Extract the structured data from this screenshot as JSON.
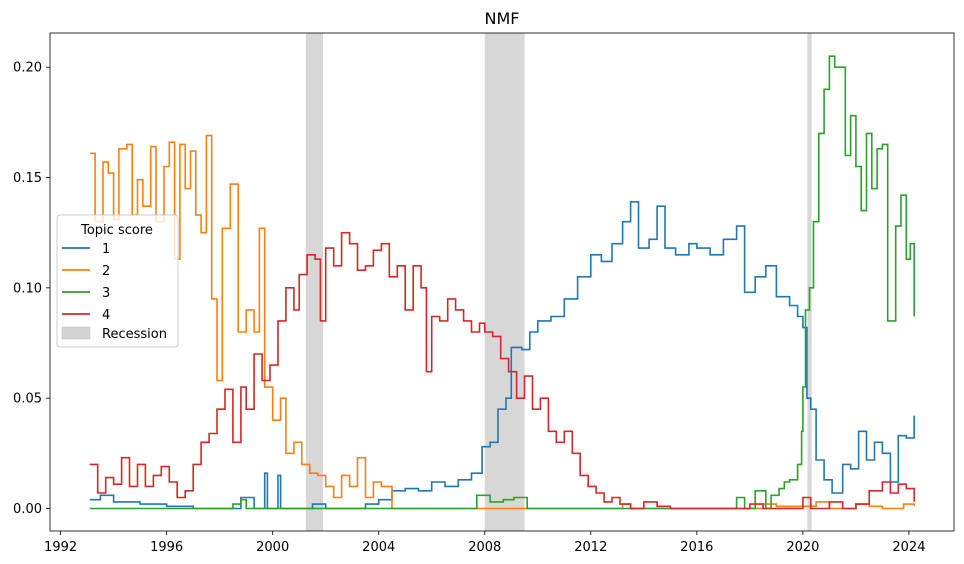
{
  "chart_data": {
    "type": "line",
    "step": true,
    "title": "NMF",
    "xlabel": "",
    "ylabel": "",
    "xlim": [
      1991.6,
      2025.7
    ],
    "ylim": [
      -0.0102,
      0.2155
    ],
    "xticks": [
      1992,
      1996,
      2000,
      2004,
      2008,
      2012,
      2016,
      2020,
      2024
    ],
    "yticks": [
      0.0,
      0.05,
      0.1,
      0.15,
      0.2
    ],
    "ytick_labels": [
      "0.00",
      "0.05",
      "0.10",
      "0.15",
      "0.20"
    ],
    "grid": false,
    "legend": {
      "title": "Topic score",
      "placement": "center-left"
    },
    "recessions": [
      [
        2001.25,
        2001.9
      ],
      [
        2008.0,
        2009.5
      ],
      [
        2020.17,
        2020.33
      ]
    ],
    "recession_label": "Recession",
    "recession_color": "#d3d3d3",
    "series": [
      {
        "name": "1",
        "color": "#1f77b4",
        "points": [
          [
            1993.1,
            0.004
          ],
          [
            1993.5,
            0.006
          ],
          [
            1994.0,
            0.003
          ],
          [
            1995.0,
            0.002
          ],
          [
            1996.0,
            0.001
          ],
          [
            1997.0,
            0.0
          ],
          [
            1998.0,
            0.0
          ],
          [
            1998.8,
            0.005
          ],
          [
            1999.3,
            0.0
          ],
          [
            1999.7,
            0.016
          ],
          [
            1999.8,
            0.0
          ],
          [
            2000.2,
            0.015
          ],
          [
            2000.3,
            0.0
          ],
          [
            2001.5,
            0.002
          ],
          [
            2002.0,
            0.0
          ],
          [
            2003.5,
            0.002
          ],
          [
            2004.0,
            0.004
          ],
          [
            2004.5,
            0.008
          ],
          [
            2005.0,
            0.009
          ],
          [
            2005.5,
            0.008
          ],
          [
            2006.0,
            0.012
          ],
          [
            2006.5,
            0.01
          ],
          [
            2007.0,
            0.013
          ],
          [
            2007.5,
            0.016
          ],
          [
            2007.9,
            0.028
          ],
          [
            2008.2,
            0.03
          ],
          [
            2008.5,
            0.045
          ],
          [
            2008.8,
            0.05
          ],
          [
            2009.0,
            0.073
          ],
          [
            2009.4,
            0.072
          ],
          [
            2009.7,
            0.08
          ],
          [
            2010.0,
            0.085
          ],
          [
            2010.5,
            0.087
          ],
          [
            2011.0,
            0.095
          ],
          [
            2011.5,
            0.105
          ],
          [
            2012.0,
            0.115
          ],
          [
            2012.4,
            0.112
          ],
          [
            2012.8,
            0.12
          ],
          [
            2013.2,
            0.13
          ],
          [
            2013.5,
            0.139
          ],
          [
            2013.8,
            0.118
          ],
          [
            2014.2,
            0.122
          ],
          [
            2014.5,
            0.137
          ],
          [
            2014.8,
            0.118
          ],
          [
            2015.2,
            0.115
          ],
          [
            2015.7,
            0.12
          ],
          [
            2016.0,
            0.118
          ],
          [
            2016.5,
            0.115
          ],
          [
            2017.0,
            0.122
          ],
          [
            2017.5,
            0.128
          ],
          [
            2017.8,
            0.098
          ],
          [
            2018.2,
            0.105
          ],
          [
            2018.6,
            0.11
          ],
          [
            2019.0,
            0.096
          ],
          [
            2019.5,
            0.092
          ],
          [
            2019.8,
            0.087
          ],
          [
            2020.0,
            0.082
          ],
          [
            2020.15,
            0.05
          ],
          [
            2020.3,
            0.045
          ],
          [
            2020.5,
            0.022
          ],
          [
            2020.8,
            0.013
          ],
          [
            2021.1,
            0.007
          ],
          [
            2021.5,
            0.02
          ],
          [
            2021.8,
            0.018
          ],
          [
            2022.1,
            0.035
          ],
          [
            2022.4,
            0.022
          ],
          [
            2022.7,
            0.03
          ],
          [
            2023.0,
            0.025
          ],
          [
            2023.3,
            0.012
          ],
          [
            2023.6,
            0.033
          ],
          [
            2023.9,
            0.032
          ],
          [
            2024.2,
            0.042
          ]
        ],
        "xend": 2024.2
      },
      {
        "name": "2",
        "color": "#ff7f0e",
        "points": [
          [
            1993.1,
            0.161
          ],
          [
            1993.3,
            0.13
          ],
          [
            1993.6,
            0.157
          ],
          [
            1993.8,
            0.152
          ],
          [
            1994.0,
            0.131
          ],
          [
            1994.2,
            0.163
          ],
          [
            1994.5,
            0.165
          ],
          [
            1994.7,
            0.133
          ],
          [
            1994.9,
            0.149
          ],
          [
            1995.1,
            0.137
          ],
          [
            1995.4,
            0.164
          ],
          [
            1995.6,
            0.13
          ],
          [
            1995.9,
            0.155
          ],
          [
            1996.1,
            0.166
          ],
          [
            1996.3,
            0.113
          ],
          [
            1996.5,
            0.165
          ],
          [
            1996.7,
            0.145
          ],
          [
            1996.9,
            0.162
          ],
          [
            1997.1,
            0.133
          ],
          [
            1997.3,
            0.125
          ],
          [
            1997.5,
            0.169
          ],
          [
            1997.7,
            0.095
          ],
          [
            1997.9,
            0.058
          ],
          [
            1998.1,
            0.127
          ],
          [
            1998.4,
            0.147
          ],
          [
            1998.7,
            0.08
          ],
          [
            1999.0,
            0.09
          ],
          [
            1999.3,
            0.08
          ],
          [
            1999.5,
            0.127
          ],
          [
            1999.7,
            0.055
          ],
          [
            2000.0,
            0.04
          ],
          [
            2000.3,
            0.05
          ],
          [
            2000.5,
            0.025
          ],
          [
            2000.8,
            0.03
          ],
          [
            2001.1,
            0.02
          ],
          [
            2001.4,
            0.016
          ],
          [
            2001.7,
            0.015
          ],
          [
            2002.0,
            0.01
          ],
          [
            2002.3,
            0.005
          ],
          [
            2002.6,
            0.015
          ],
          [
            2002.9,
            0.01
          ],
          [
            2003.2,
            0.023
          ],
          [
            2003.5,
            0.005
          ],
          [
            2003.8,
            0.012
          ],
          [
            2004.1,
            0.01
          ],
          [
            2004.5,
            0.0
          ],
          [
            2005.0,
            0.0
          ],
          [
            2013.2,
            0.002
          ],
          [
            2013.5,
            0.0
          ],
          [
            2017.0,
            0.0
          ],
          [
            2018.5,
            0.002
          ],
          [
            2019.0,
            0.001
          ],
          [
            2020.5,
            0.003
          ],
          [
            2021.0,
            0.0
          ],
          [
            2022.0,
            0.002
          ],
          [
            2022.5,
            0.001
          ],
          [
            2023.0,
            0.0
          ],
          [
            2023.8,
            0.002
          ],
          [
            2024.2,
            0.001
          ]
        ],
        "xend": 2024.2
      },
      {
        "name": "3",
        "color": "#2ca02c",
        "points": [
          [
            1993.1,
            0.0
          ],
          [
            1998.5,
            0.002
          ],
          [
            1998.8,
            0.004
          ],
          [
            1999.0,
            0.0
          ],
          [
            2001.5,
            0.0
          ],
          [
            2007.7,
            0.006
          ],
          [
            2008.2,
            0.003
          ],
          [
            2008.7,
            0.004
          ],
          [
            2009.1,
            0.005
          ],
          [
            2009.6,
            0.0
          ],
          [
            2013.0,
            0.0
          ],
          [
            2017.0,
            0.0
          ],
          [
            2017.5,
            0.005
          ],
          [
            2017.8,
            0.0
          ],
          [
            2018.2,
            0.008
          ],
          [
            2018.6,
            0.0
          ],
          [
            2018.8,
            0.006
          ],
          [
            2019.1,
            0.009
          ],
          [
            2019.3,
            0.012
          ],
          [
            2019.5,
            0.013
          ],
          [
            2019.8,
            0.02
          ],
          [
            2019.95,
            0.035
          ],
          [
            2020.0,
            0.055
          ],
          [
            2020.1,
            0.09
          ],
          [
            2020.25,
            0.1
          ],
          [
            2020.4,
            0.13
          ],
          [
            2020.6,
            0.17
          ],
          [
            2020.8,
            0.19
          ],
          [
            2021.0,
            0.205
          ],
          [
            2021.2,
            0.2
          ],
          [
            2021.4,
            0.2
          ],
          [
            2021.6,
            0.16
          ],
          [
            2021.8,
            0.178
          ],
          [
            2022.0,
            0.155
          ],
          [
            2022.2,
            0.135
          ],
          [
            2022.4,
            0.17
          ],
          [
            2022.6,
            0.145
          ],
          [
            2022.8,
            0.163
          ],
          [
            2023.0,
            0.165
          ],
          [
            2023.2,
            0.085
          ],
          [
            2023.5,
            0.128
          ],
          [
            2023.7,
            0.142
          ],
          [
            2023.9,
            0.113
          ],
          [
            2024.05,
            0.12
          ],
          [
            2024.2,
            0.087
          ]
        ],
        "xend": 2024.2
      },
      {
        "name": "4",
        "color": "#d62728",
        "points": [
          [
            1993.1,
            0.02
          ],
          [
            1993.4,
            0.007
          ],
          [
            1993.7,
            0.014
          ],
          [
            1994.0,
            0.011
          ],
          [
            1994.3,
            0.023
          ],
          [
            1994.6,
            0.01
          ],
          [
            1994.9,
            0.02
          ],
          [
            1995.2,
            0.01
          ],
          [
            1995.5,
            0.015
          ],
          [
            1995.8,
            0.019
          ],
          [
            1996.1,
            0.012
          ],
          [
            1996.4,
            0.005
          ],
          [
            1996.7,
            0.008
          ],
          [
            1997.0,
            0.02
          ],
          [
            1997.3,
            0.03
          ],
          [
            1997.6,
            0.034
          ],
          [
            1997.9,
            0.045
          ],
          [
            1998.2,
            0.054
          ],
          [
            1998.5,
            0.03
          ],
          [
            1998.8,
            0.055
          ],
          [
            1999.0,
            0.045
          ],
          [
            1999.3,
            0.07
          ],
          [
            1999.6,
            0.058
          ],
          [
            1999.9,
            0.065
          ],
          [
            2000.2,
            0.085
          ],
          [
            2000.5,
            0.1
          ],
          [
            2000.8,
            0.09
          ],
          [
            2001.0,
            0.106
          ],
          [
            2001.3,
            0.115
          ],
          [
            2001.6,
            0.113
          ],
          [
            2001.8,
            0.085
          ],
          [
            2002.0,
            0.118
          ],
          [
            2002.3,
            0.11
          ],
          [
            2002.6,
            0.125
          ],
          [
            2002.9,
            0.12
          ],
          [
            2003.2,
            0.108
          ],
          [
            2003.5,
            0.11
          ],
          [
            2003.8,
            0.117
          ],
          [
            2004.1,
            0.12
          ],
          [
            2004.4,
            0.105
          ],
          [
            2004.7,
            0.11
          ],
          [
            2005.0,
            0.09
          ],
          [
            2005.3,
            0.11
          ],
          [
            2005.6,
            0.1
          ],
          [
            2005.8,
            0.062
          ],
          [
            2006.0,
            0.087
          ],
          [
            2006.3,
            0.085
          ],
          [
            2006.6,
            0.095
          ],
          [
            2006.9,
            0.09
          ],
          [
            2007.2,
            0.085
          ],
          [
            2007.5,
            0.08
          ],
          [
            2007.8,
            0.084
          ],
          [
            2008.0,
            0.08
          ],
          [
            2008.3,
            0.078
          ],
          [
            2008.6,
            0.068
          ],
          [
            2008.9,
            0.062
          ],
          [
            2009.2,
            0.05
          ],
          [
            2009.5,
            0.06
          ],
          [
            2009.8,
            0.045
          ],
          [
            2010.1,
            0.05
          ],
          [
            2010.4,
            0.035
          ],
          [
            2010.7,
            0.03
          ],
          [
            2011.0,
            0.035
          ],
          [
            2011.3,
            0.025
          ],
          [
            2011.6,
            0.015
          ],
          [
            2011.9,
            0.01
          ],
          [
            2012.2,
            0.007
          ],
          [
            2012.5,
            0.003
          ],
          [
            2012.8,
            0.005
          ],
          [
            2013.1,
            0.002
          ],
          [
            2013.5,
            0.0
          ],
          [
            2014.0,
            0.003
          ],
          [
            2014.5,
            0.001
          ],
          [
            2015.0,
            0.0
          ],
          [
            2016.0,
            0.0
          ],
          [
            2017.0,
            0.0
          ],
          [
            2018.0,
            0.002
          ],
          [
            2018.5,
            0.0
          ],
          [
            2019.0,
            0.0
          ],
          [
            2020.0,
            0.005
          ],
          [
            2020.3,
            0.0
          ],
          [
            2021.0,
            0.003
          ],
          [
            2021.5,
            0.0
          ],
          [
            2022.0,
            0.002
          ],
          [
            2022.5,
            0.008
          ],
          [
            2023.0,
            0.012
          ],
          [
            2023.3,
            0.007
          ],
          [
            2023.6,
            0.011
          ],
          [
            2023.9,
            0.009
          ],
          [
            2024.2,
            0.003
          ]
        ],
        "xend": 2024.2
      }
    ]
  }
}
